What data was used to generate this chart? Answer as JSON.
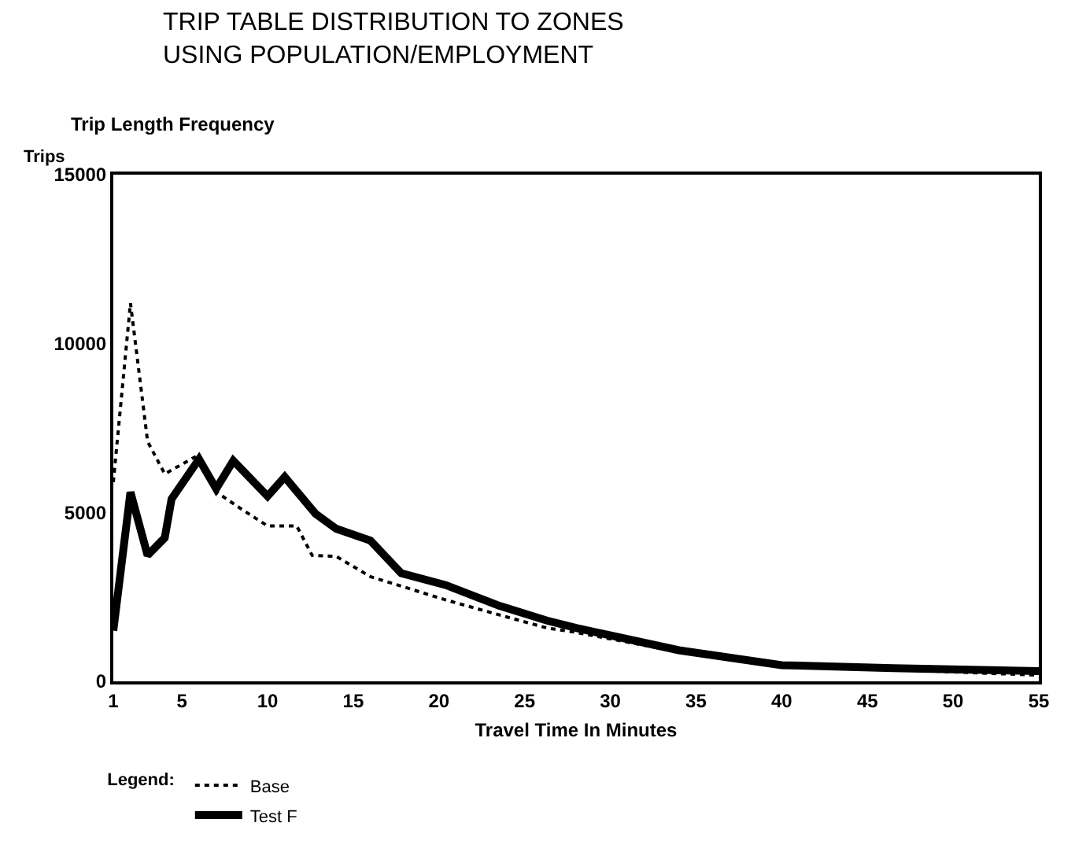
{
  "chart_data": {
    "type": "line",
    "title": "TRIP TABLE DISTRIBUTION TO ZONES\nUSING POPULATION/EMPLOYMENT",
    "subtitle": "Trip Length Frequency",
    "xlabel": "Travel Time In Minutes",
    "ylabel": "Trips",
    "legend_title": "Legend:",
    "xlim": [
      1,
      55
    ],
    "xticks": [
      1,
      5,
      10,
      15,
      20,
      25,
      30,
      35,
      40,
      45,
      50,
      55
    ],
    "ylim": [
      0,
      15000
    ],
    "yticks": [
      0,
      5000,
      10000,
      15000
    ],
    "grid": false,
    "legend": "bottom left",
    "marker": "none",
    "series": [
      {
        "name": "Base",
        "color": "#000000",
        "line_style": "dotted",
        "x": [
          1,
          2,
          3,
          4,
          6,
          7,
          8.5,
          10,
          11.7,
          12.6,
          14,
          16,
          17.6,
          20.4,
          23.5,
          26.3,
          28,
          34,
          40,
          46.5,
          55
        ],
        "values": [
          5900,
          11200,
          7100,
          6140,
          6710,
          5610,
          5090,
          4600,
          4600,
          3730,
          3700,
          3100,
          2850,
          2410,
          1970,
          1580,
          1450,
          870,
          480,
          350,
          180
        ]
      },
      {
        "name": "Test F",
        "color": "#000000",
        "line_style": "solid",
        "x": [
          1,
          2,
          3,
          4,
          4.4,
          6,
          7,
          8,
          10,
          11,
          12.8,
          14,
          16,
          17.8,
          20.4,
          23.5,
          26.3,
          28,
          34,
          40,
          46.5,
          55
        ],
        "values": [
          1500,
          5600,
          3730,
          4250,
          5400,
          6580,
          5700,
          6530,
          5480,
          6050,
          4960,
          4520,
          4170,
          3200,
          2850,
          2240,
          1800,
          1580,
          920,
          480,
          390,
          300
        ]
      }
    ]
  }
}
